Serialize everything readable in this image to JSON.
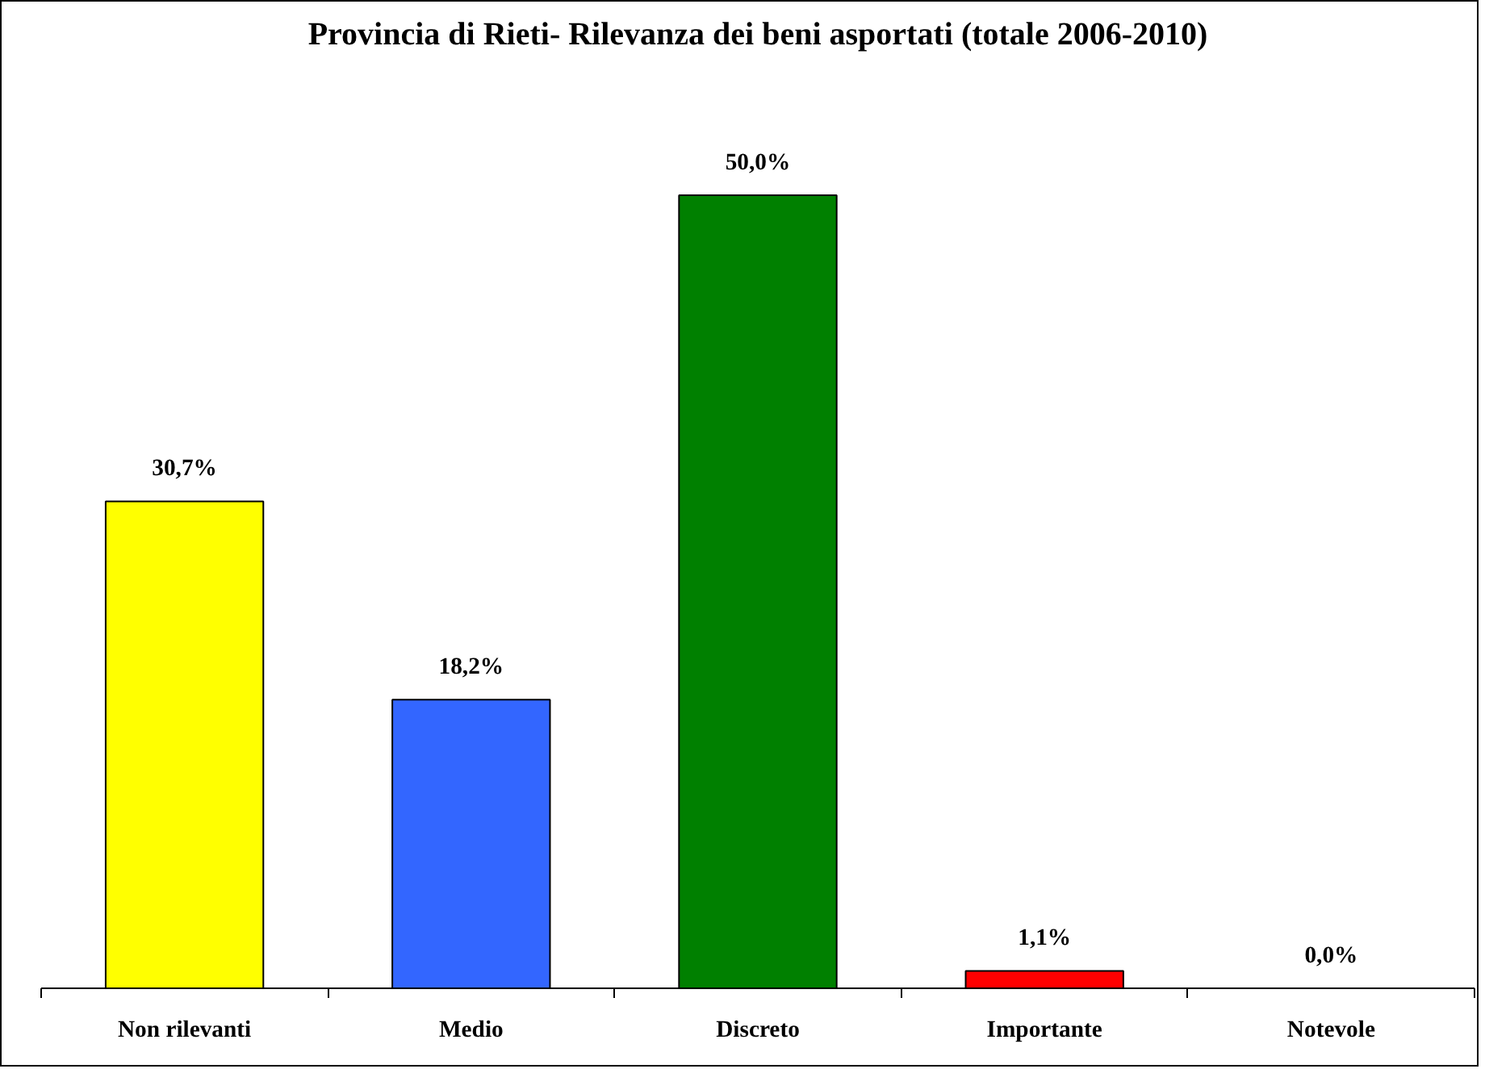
{
  "chart_data": {
    "type": "bar",
    "title": "Provincia di Rieti- Rilevanza dei beni asportati (totale 2006-2010)",
    "categories": [
      "Non rilevanti",
      "Medio",
      "Discreto",
      "Importante",
      "Notevole"
    ],
    "values": [
      30.7,
      18.2,
      50.0,
      1.1,
      0.0
    ],
    "colors": [
      "#ffff00",
      "#3366ff",
      "#008000",
      "#ff0000",
      "#000000"
    ],
    "value_labels": [
      "30,7%",
      "18,2%",
      "50,0%",
      "1,1%",
      "0,0%"
    ],
    "grid": false
  }
}
